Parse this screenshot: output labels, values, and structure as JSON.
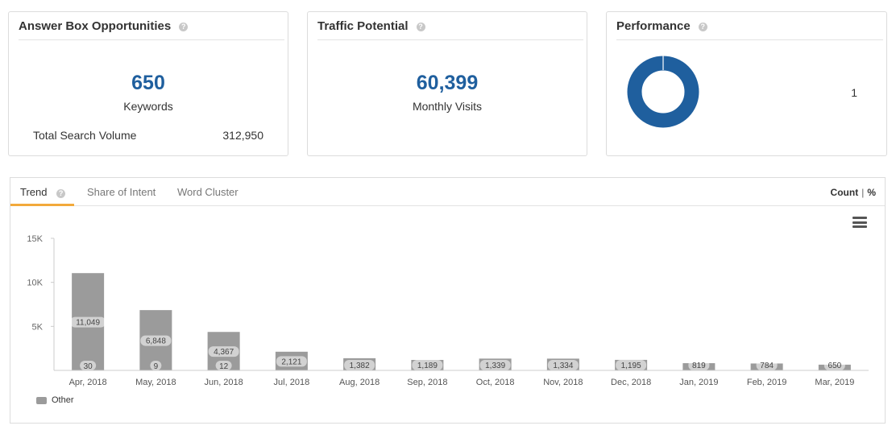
{
  "answer_box": {
    "title": "Answer Box Opportunities",
    "keywords_value": "650",
    "keywords_label": "Keywords",
    "tsv_label": "Total Search Volume",
    "tsv_value": "312,950"
  },
  "traffic": {
    "title": "Traffic Potential",
    "value": "60,399",
    "label": "Monthly Visits"
  },
  "performance": {
    "title": "Performance",
    "value": "1",
    "donut_color": "#1f5f9e"
  },
  "trend": {
    "tabs": [
      "Trend",
      "Share of Intent",
      "Word Cluster"
    ],
    "active_tab": "Trend",
    "toggle_count": "Count",
    "toggle_sep": "|",
    "toggle_pct": "%",
    "menu_icon": "hamburger-menu-icon"
  },
  "chart_data": {
    "type": "bar",
    "categories": [
      "Apr, 2018",
      "May, 2018",
      "Jun, 2018",
      "Jul, 2018",
      "Aug, 2018",
      "Sep, 2018",
      "Oct, 2018",
      "Nov, 2018",
      "Dec, 2018",
      "Jan, 2019",
      "Feb, 2019",
      "Mar, 2019"
    ],
    "series": [
      {
        "name": "Other",
        "color": "#9b9b9b",
        "values": [
          11049,
          6848,
          4367,
          2121,
          1382,
          1189,
          1339,
          1334,
          1195,
          819,
          784,
          650
        ]
      }
    ],
    "value_labels": [
      "11,049",
      "6,848",
      "4,367",
      "2,121",
      "1,382",
      "1,189",
      "1,339",
      "1,334",
      "1,195",
      "819",
      "784",
      "650"
    ],
    "secondary_labels": [
      "30",
      "9",
      "12"
    ],
    "yticks": [
      {
        "value": 5000,
        "label": "5K"
      },
      {
        "value": 10000,
        "label": "10K"
      },
      {
        "value": 15000,
        "label": "15K"
      }
    ],
    "ylim": [
      0,
      15000
    ],
    "xlabel": "",
    "ylabel": "",
    "legend": "bottom-left"
  }
}
